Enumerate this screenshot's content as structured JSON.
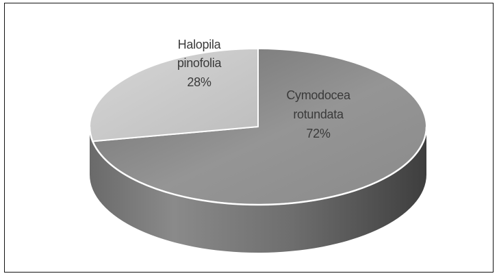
{
  "chart_data": {
    "type": "pie",
    "style": "3d",
    "title": "",
    "legend": "none",
    "slices": [
      {
        "label_lines": [
          "Cymodocea",
          "rotundata"
        ],
        "percent_label": "72%",
        "value": 72,
        "color": "#8c8c8c"
      },
      {
        "label_lines": [
          "Halopila",
          "pinofolia"
        ],
        "percent_label": "28%",
        "value": 28,
        "color": "#c4c4c4"
      }
    ],
    "colors": {
      "edge": "#ffffff",
      "frame": "#111111"
    }
  }
}
